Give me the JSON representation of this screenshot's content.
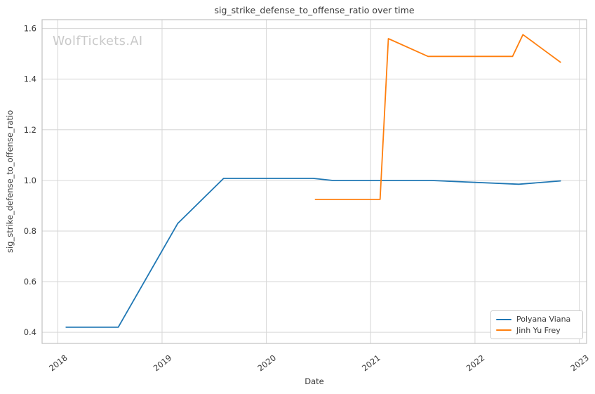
{
  "watermark": "WolfTickets.AI",
  "colors": {
    "background": "#ffffff",
    "grid": "#d6d6d6",
    "spine": "#c0c0c0",
    "text": "#3a3a3a",
    "watermark": "#c9c9c9"
  },
  "chart_data": {
    "type": "line",
    "title": "sig_strike_defense_to_offense_ratio over time",
    "xlabel": "Date",
    "ylabel": "sig_strike_defense_to_offense_ratio",
    "x_unit": "decimal_year",
    "xlim": [
      2017.85,
      2023.07
    ],
    "ylim": [
      0.356,
      1.635
    ],
    "grid": true,
    "legend_position": "lower right",
    "xticks": {
      "values": [
        2018,
        2019,
        2020,
        2021,
        2022,
        2023
      ],
      "labels": [
        "2018",
        "2019",
        "2020",
        "2021",
        "2022",
        "2023"
      ]
    },
    "yticks": {
      "values": [
        0.4,
        0.6,
        0.8,
        1.0,
        1.2,
        1.4,
        1.6
      ],
      "labels": [
        "0.4",
        "0.6",
        "0.8",
        "1.0",
        "1.2",
        "1.4",
        "1.6"
      ]
    },
    "series": [
      {
        "name": "Polyana Viana",
        "color": "#1f77b4",
        "x": [
          2018.08,
          2018.58,
          2019.15,
          2019.59,
          2020.45,
          2020.63,
          2021.57,
          2022.42,
          2022.82
        ],
        "y": [
          0.42,
          0.42,
          0.83,
          1.008,
          1.008,
          1.0,
          1.0,
          0.985,
          0.998
        ]
      },
      {
        "name": "Jinh Yu Frey",
        "color": "#ff7f0e",
        "x": [
          2020.47,
          2021.09,
          2021.17,
          2021.55,
          2022.36,
          2022.46,
          2022.82
        ],
        "y": [
          0.925,
          0.925,
          1.56,
          1.49,
          1.49,
          1.576,
          1.467
        ]
      }
    ]
  }
}
